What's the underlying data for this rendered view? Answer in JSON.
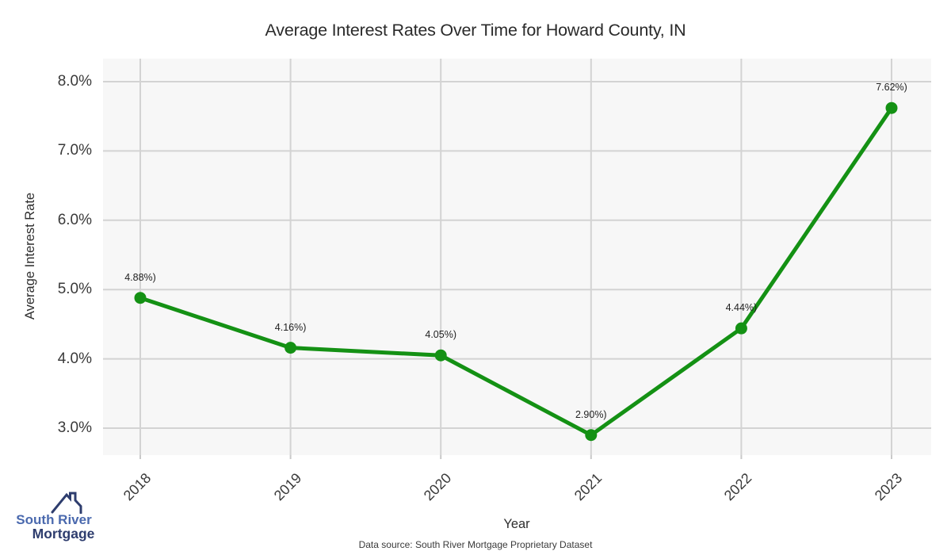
{
  "chart_data": {
    "type": "line",
    "title": "Average Interest Rates Over Time for Howard County, IN",
    "xlabel": "Year",
    "ylabel": "Average Interest Rate",
    "x": [
      "2018",
      "2019",
      "2020",
      "2021",
      "2022",
      "2023"
    ],
    "series": [
      {
        "name": "Average Interest Rate",
        "values": [
          4.88,
          4.16,
          4.05,
          2.9,
          4.44,
          7.62
        ],
        "point_labels": [
          "4.88%)",
          "4.16%)",
          "4.05%)",
          "2.90%)",
          "4.44%)",
          "7.62%)"
        ],
        "color": "#149114"
      }
    ],
    "y_ticks": [
      {
        "value": 3.0,
        "label": "3.0%"
      },
      {
        "value": 4.0,
        "label": "4.0%"
      },
      {
        "value": 5.0,
        "label": "5.0%"
      },
      {
        "value": 6.0,
        "label": "6.0%"
      },
      {
        "value": 7.0,
        "label": "7.0%"
      },
      {
        "value": 8.0,
        "label": "8.0%"
      }
    ],
    "ylim": [
      2.61,
      8.33
    ],
    "grid": true,
    "legend": "none",
    "plot_background": "#f7f7f7",
    "gridline_color": "#d3d3d3",
    "tick_color": "#c9c9c9"
  },
  "footer": {
    "source": "Data source: South River Mortgage Proprietary Dataset"
  },
  "logo": {
    "line1": "South River",
    "line2": "Mortgage",
    "color_primary": "#4a69ae",
    "color_secondary": "#2e3d6e"
  }
}
